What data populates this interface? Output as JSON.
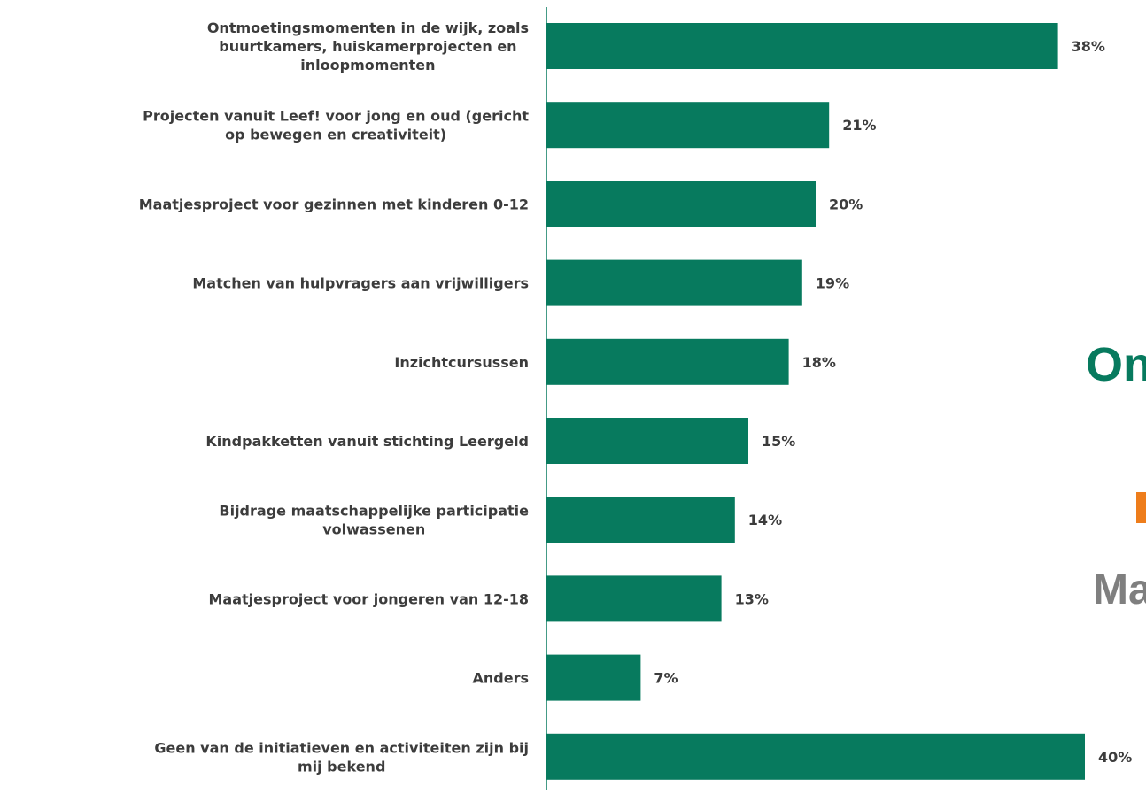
{
  "chart_data": {
    "type": "hbar",
    "categories": [
      [
        "Ontmoetingsmomenten in de wijk, zoals",
        "buurtkamers, huiskamerprojecten en",
        "inloopmomenten"
      ],
      [
        "Projecten vanuit Leef! voor jong en oud (gericht",
        "op bewegen en creativiteit)"
      ],
      [
        "Maatjesproject voor gezinnen met kinderen 0-12"
      ],
      [
        "Matchen van hulpvragers aan vrijwilligers"
      ],
      [
        "Inzichtcursussen"
      ],
      [
        "Kindpakketten vanuit stichting Leergeld"
      ],
      [
        "Bijdrage maatschappelijke participatie",
        "volwassenen"
      ],
      [
        "Maatjesproject voor jongeren van 12-18"
      ],
      [
        "Anders"
      ],
      [
        "Geen van de initiatieven en activiteiten zijn bij",
        "mij bekend"
      ]
    ],
    "values": [
      38,
      21,
      20,
      19,
      18,
      15,
      14,
      13,
      7,
      40
    ],
    "value_labels": [
      "38%",
      "21%",
      "20%",
      "19%",
      "18%",
      "15%",
      "14%",
      "13%",
      "7%",
      "40%"
    ],
    "color": "#077a5e"
  },
  "overlay_texts": {
    "green": "Ont",
    "gray": "Ma"
  }
}
